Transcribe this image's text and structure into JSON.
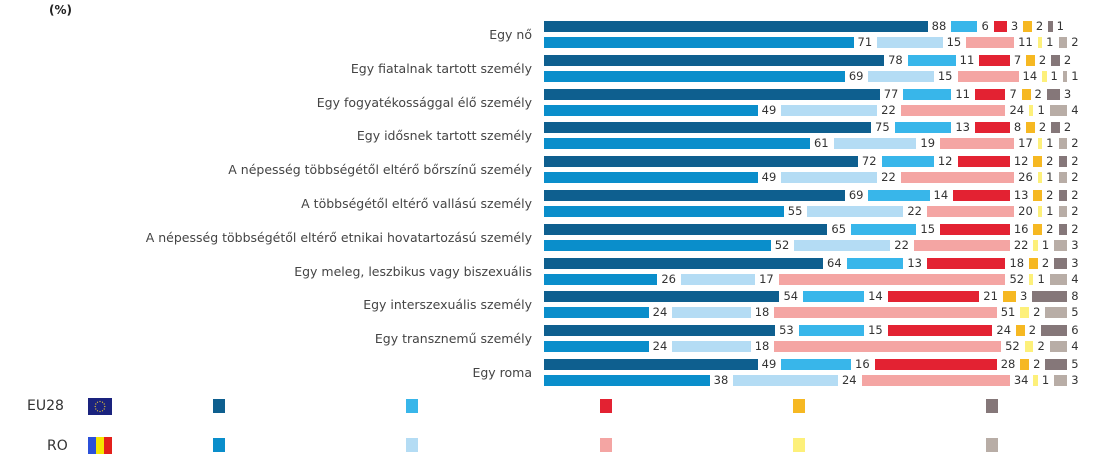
{
  "chart_data": {
    "type": "bar",
    "orientation": "horizontal",
    "stacked": true,
    "unit_label": "(%)",
    "categories": [
      "Egy nő",
      "Egy fiatalnak tartott személy",
      "Egy fogyatékossággal élő személy",
      "Egy idősnek tartott személy",
      "A népesség többségétől eltérő bőrszínű személy",
      "A többségétől eltérő vallású személy",
      "A népesség többségétől eltérő etnikai hovatartozású személy",
      "Egy meleg, leszbikus vagy biszexuális",
      "Egy interszexuális személy",
      "Egy transznemű személy",
      "Egy roma"
    ],
    "groups": [
      {
        "name": "EU28",
        "colors": [
          "#0e5f8f",
          "#38b6ea",
          "#e32232",
          "#f6b822",
          "#857779"
        ]
      },
      {
        "name": "RO",
        "colors": [
          "#0a8ecb",
          "#b4dcf4",
          "#f4a5a3",
          "#fdf07a",
          "#b8ada6"
        ]
      }
    ],
    "series_count": 5,
    "values": {
      "EU28": [
        [
          88,
          6,
          3,
          2,
          1
        ],
        [
          78,
          11,
          7,
          2,
          2
        ],
        [
          77,
          11,
          7,
          2,
          3
        ],
        [
          75,
          13,
          8,
          2,
          2
        ],
        [
          72,
          12,
          12,
          2,
          2
        ],
        [
          69,
          14,
          13,
          2,
          2
        ],
        [
          65,
          15,
          16,
          2,
          2
        ],
        [
          64,
          13,
          18,
          2,
          3
        ],
        [
          54,
          14,
          21,
          3,
          8
        ],
        [
          53,
          15,
          24,
          2,
          6
        ],
        [
          49,
          16,
          28,
          2,
          5
        ]
      ],
      "RO": [
        [
          71,
          15,
          11,
          1,
          2
        ],
        [
          69,
          15,
          14,
          1,
          1
        ],
        [
          49,
          22,
          24,
          1,
          4
        ],
        [
          61,
          19,
          17,
          1,
          2
        ],
        [
          49,
          22,
          26,
          1,
          2
        ],
        [
          55,
          22,
          20,
          1,
          2
        ],
        [
          52,
          22,
          22,
          1,
          3
        ],
        [
          26,
          17,
          52,
          1,
          4
        ],
        [
          24,
          18,
          51,
          2,
          5
        ],
        [
          24,
          18,
          52,
          2,
          4
        ],
        [
          38,
          24,
          34,
          1,
          3
        ]
      ]
    },
    "legend": {
      "position": "bottom",
      "rows": [
        {
          "label": "EU28",
          "flag": "eu-flag"
        },
        {
          "label": "RO",
          "flag": "ro-flag"
        }
      ]
    }
  }
}
